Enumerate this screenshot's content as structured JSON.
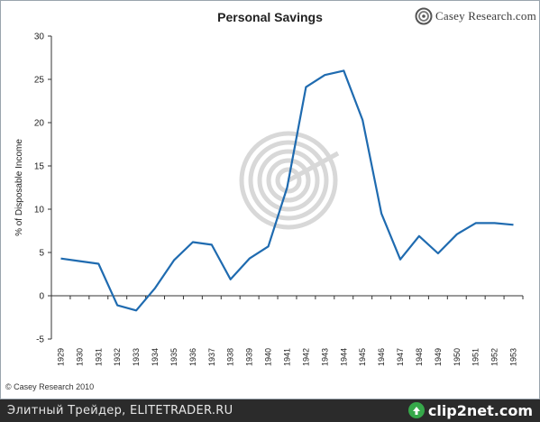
{
  "logo": {
    "name": "Casey Research.com"
  },
  "copyright": "© Casey Research 2010",
  "bottom_bar": {
    "caption": "Элитный Трейдер, ELITETRADER.RU",
    "logo_text": "clip2net.com"
  },
  "colors": {
    "line": "#1f6bb0",
    "axis": "#333333",
    "watermark": "#d8d8d8",
    "logo_green": "#36a84a"
  },
  "chart_data": {
    "type": "line",
    "title": "Personal Savings",
    "ylabel": "% of Disposable Income",
    "xlabel": "",
    "ylim": [
      -5,
      30
    ],
    "yticks": [
      -5,
      0,
      5,
      10,
      15,
      20,
      25,
      30
    ],
    "grid": false,
    "categories": [
      "1929",
      "1930",
      "1931",
      "1932",
      "1933",
      "1934",
      "1935",
      "1936",
      "1937",
      "1938",
      "1939",
      "1940",
      "1941",
      "1942",
      "1943",
      "1944",
      "1945",
      "1946",
      "1947",
      "1948",
      "1949",
      "1950",
      "1951",
      "1952",
      "1953"
    ],
    "series": [
      {
        "values": [
          4.3,
          4.0,
          3.7,
          -1.1,
          -1.7,
          0.9,
          4.1,
          6.2,
          5.9,
          1.9,
          4.3,
          5.7,
          12.5,
          24.1,
          25.5,
          26.0,
          20.3,
          9.5,
          4.2,
          6.9,
          4.9,
          7.1,
          8.4,
          8.4,
          8.2
        ]
      }
    ]
  }
}
